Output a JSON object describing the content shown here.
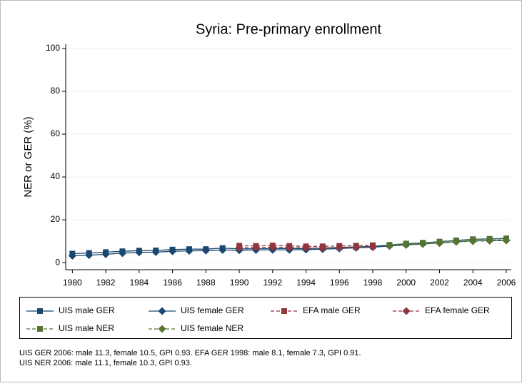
{
  "chart_data": {
    "type": "line",
    "title": "Syria: Pre-primary enrollment",
    "y_label": "NER or GER (%)",
    "x": [
      1980,
      1981,
      1982,
      1983,
      1984,
      1985,
      1986,
      1987,
      1988,
      1989,
      1990,
      1991,
      1992,
      1993,
      1994,
      1995,
      1996,
      1997,
      1998,
      1999,
      2000,
      2001,
      2002,
      2003,
      2004,
      2005,
      2006
    ],
    "series": [
      {
        "name": "UIS male GER",
        "color": "#1a476f",
        "marker": "square",
        "dashed": false,
        "values": [
          4.2,
          4.5,
          4.9,
          5.3,
          5.6,
          5.7,
          6.1,
          6.3,
          6.3,
          6.8,
          6.4,
          6.5,
          6.6,
          6.6,
          6.6,
          6.8,
          7.1,
          7.3,
          7.6,
          8.2,
          8.8,
          9.2,
          9.8,
          10.4,
          10.9,
          11.1,
          11.3
        ]
      },
      {
        "name": "UIS female GER",
        "color": "#1a476f",
        "marker": "diamond",
        "dashed": false,
        "values": [
          3.2,
          3.5,
          3.9,
          4.4,
          4.8,
          4.9,
          5.3,
          5.5,
          5.6,
          5.9,
          5.8,
          5.9,
          6.0,
          6.0,
          6.1,
          6.3,
          6.6,
          6.9,
          7.2,
          7.8,
          8.3,
          8.7,
          9.2,
          9.8,
          10.2,
          10.4,
          10.5
        ]
      },
      {
        "name": "EFA male GER",
        "color": "#90353b",
        "marker": "square",
        "dashed": true,
        "values": [
          null,
          null,
          null,
          null,
          null,
          null,
          null,
          null,
          null,
          null,
          7.9,
          7.8,
          8.0,
          7.8,
          7.6,
          7.6,
          7.8,
          7.9,
          8.1,
          null,
          null,
          null,
          null,
          null,
          null,
          null,
          null
        ]
      },
      {
        "name": "EFA female GER",
        "color": "#90353b",
        "marker": "diamond",
        "dashed": true,
        "values": [
          null,
          null,
          null,
          null,
          null,
          null,
          null,
          null,
          null,
          null,
          6.9,
          7.0,
          7.2,
          7.0,
          6.9,
          6.8,
          7.0,
          7.1,
          7.3,
          null,
          null,
          null,
          null,
          null,
          null,
          null,
          null
        ]
      },
      {
        "name": "UIS male NER",
        "color": "#55752f",
        "marker": "square",
        "dashed": true,
        "values": [
          null,
          null,
          null,
          null,
          null,
          null,
          null,
          null,
          null,
          null,
          null,
          null,
          null,
          null,
          null,
          null,
          null,
          null,
          null,
          8.3,
          8.9,
          9.3,
          9.7,
          10.3,
          10.8,
          11.0,
          11.1
        ]
      },
      {
        "name": "UIS female NER",
        "color": "#55752f",
        "marker": "diamond",
        "dashed": true,
        "values": [
          null,
          null,
          null,
          null,
          null,
          null,
          null,
          null,
          null,
          null,
          null,
          null,
          null,
          null,
          null,
          null,
          null,
          null,
          null,
          7.8,
          8.4,
          8.8,
          9.1,
          9.7,
          10.0,
          10.2,
          10.3
        ]
      }
    ],
    "xlim": [
      1979.6,
      2006.3
    ],
    "xticks": [
      1980,
      1982,
      1984,
      1986,
      1988,
      1990,
      1992,
      1994,
      1996,
      1998,
      2000,
      2002,
      2004,
      2006
    ],
    "ylim": [
      -3.3,
      102
    ],
    "yticks": [
      0,
      20,
      40,
      60,
      80,
      100
    ],
    "grid": true,
    "notes": [
      "UIS GER 2006: male 11.3, female 10.5, GPI 0.93. EFA GER 1998: male 8.1, female 7.3, GPI 0.91.",
      "UIS NER 2006: male 11.1, female 10.3, GPI 0.93."
    ]
  }
}
